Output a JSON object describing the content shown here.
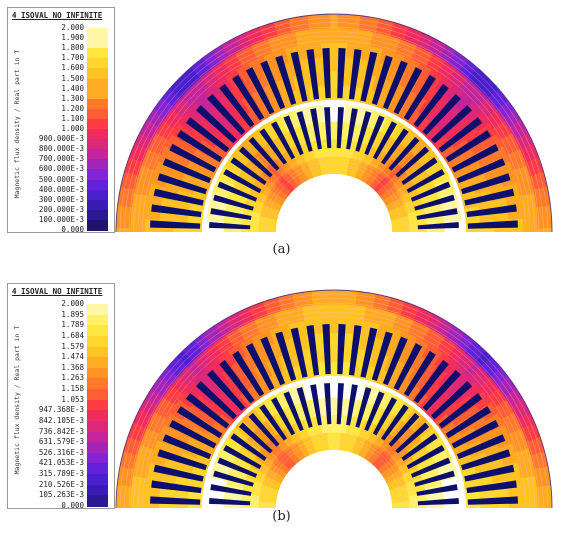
{
  "figures": [
    {
      "caption": "(a)",
      "legend": {
        "title": "4_ISOVAL_NO_INFINITE",
        "axis_label": "Magnetic flux density / Real part in T",
        "levels": [
          "2.000",
          "1.900",
          "1.800",
          "1.700",
          "1.600",
          "1.500",
          "1.400",
          "1.300",
          "1.200",
          "1.100",
          "1.000",
          "900.000E-3",
          "800.000E-3",
          "700.000E-3",
          "600.000E-3",
          "500.000E-3",
          "400.000E-3",
          "300.000E-3",
          "200.000E-3",
          "100.000E-3",
          "0.000"
        ]
      },
      "field_map": {
        "min": 0,
        "max": 2.0,
        "unit": "T",
        "stator_slots": 36,
        "rotor_slots": 28
      }
    },
    {
      "caption": "(b)",
      "legend": {
        "title": "4_ISOVAL_NO_INFINITE",
        "axis_label": "Magnetic flux density / Real part in T",
        "levels": [
          "2.000",
          "1.895",
          "1.789",
          "1.684",
          "1.579",
          "1.474",
          "1.368",
          "1.263",
          "1.158",
          "1.053",
          "947.368E-3",
          "842.105E-3",
          "736.842E-3",
          "631.579E-3",
          "526.316E-3",
          "421.053E-3",
          "315.789E-3",
          "210.526E-3",
          "105.263E-3",
          "0.000"
        ]
      },
      "field_map": {
        "min": 0,
        "max": 2.0,
        "unit": "T",
        "stator_slots": 36,
        "rotor_slots": 28
      }
    }
  ],
  "colors": {
    "scale": [
      "#ffffff",
      "#fff7a6",
      "#fff26a",
      "#ffe640",
      "#ffd62d",
      "#ffc224",
      "#ffab23",
      "#ff9324",
      "#ff7a2a",
      "#ff5e34",
      "#ff3c44",
      "#f02c5e",
      "#dc2878",
      "#c4259a",
      "#a524b8",
      "#8424d2",
      "#6322da",
      "#4a1fcd",
      "#3a1bb3",
      "#2c1894",
      "#1e1470"
    ],
    "slot": "#0c0f6c",
    "line": "#f2c7d2"
  }
}
